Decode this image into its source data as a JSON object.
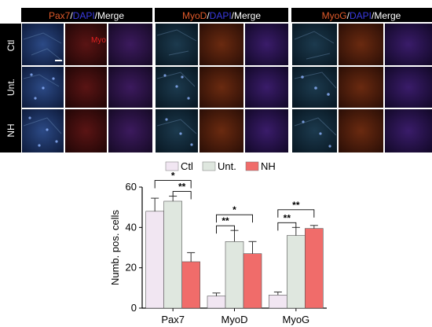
{
  "figure": {
    "headers": [
      {
        "marker": "Pax7",
        "sep1": "/",
        "dapi": "DAPI",
        "sep2": "/",
        "merge": "Merge"
      },
      {
        "marker": "MyoD",
        "sep1": "/",
        "dapi": "DAPI",
        "sep2": "/",
        "merge": "Merge"
      },
      {
        "marker": "MyoG",
        "sep1": "/",
        "dapi": "DAPI",
        "sep2": "/",
        "merge": "Merge"
      }
    ],
    "rows": [
      "Ctl",
      "Unt.",
      "NH"
    ],
    "inset_label": "Myo",
    "colors": {
      "marker_text": "#e05a2a",
      "dapi_text": "#3a3ae0",
      "merge_text": "#ffffff",
      "header_bg": "#000000",
      "row_label_bg": "#000000"
    }
  },
  "chart_data": {
    "type": "bar",
    "categories": [
      "Pax7",
      "MyoD",
      "MyoG"
    ],
    "ylabel": "Numb. pos. cells",
    "ylim": [
      0,
      60
    ],
    "yticks": [
      0,
      20,
      40,
      60
    ],
    "legend": [
      "Ctl",
      "Unt.",
      "NH"
    ],
    "series": [
      {
        "name": "Ctl",
        "color": "#f1e6f2",
        "values": [
          48,
          6,
          6.5
        ],
        "errors": [
          6.5,
          1.5,
          1.5
        ]
      },
      {
        "name": "Unt.",
        "color": "#dfe7df",
        "values": [
          53,
          33,
          36
        ],
        "errors": [
          2.5,
          5.5,
          4
        ]
      },
      {
        "name": "NH",
        "color": "#f06c6a",
        "values": [
          23,
          27,
          39.5
        ],
        "errors": [
          4.5,
          6,
          1.5
        ]
      }
    ],
    "significance": [
      {
        "label": "*",
        "group": 0,
        "from": 0,
        "to": 2,
        "level": 1
      },
      {
        "label": "**",
        "group": 0,
        "from": 1,
        "to": 2,
        "level": 0
      },
      {
        "label": "**",
        "group": 1,
        "from": 0,
        "to": 1,
        "level": 0
      },
      {
        "label": "*",
        "group": 1,
        "from": 0,
        "to": 2,
        "level": 1
      },
      {
        "label": "**",
        "group": 2,
        "from": 0,
        "to": 1,
        "level": 0
      },
      {
        "label": "**",
        "group": 2,
        "from": 0,
        "to": 2,
        "level": 1
      }
    ]
  }
}
